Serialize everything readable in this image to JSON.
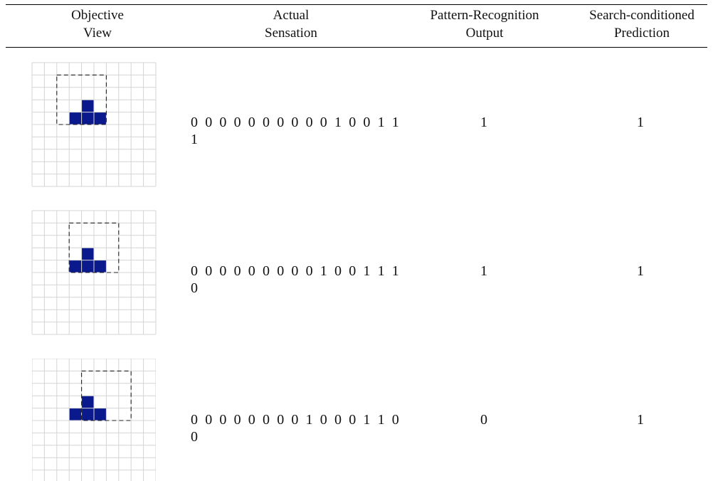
{
  "headers": {
    "objective": [
      "Objective",
      "View"
    ],
    "sensation": [
      "Actual",
      "Sensation"
    ],
    "pattern": [
      "Pattern-Recognition",
      "Output"
    ],
    "search": [
      "Search-conditioned",
      "Prediction"
    ]
  },
  "rows": [
    {
      "sensation": "0 0 0 0 0 0 0 0 0 0 1 0 0 1 1 1",
      "pattern_output": "1",
      "search_prediction": "1",
      "window": {
        "col": 2,
        "row": 1
      }
    },
    {
      "sensation": "0 0 0 0 0 0 0 0 0 1 0 0 1 1 1 0",
      "pattern_output": "1",
      "search_prediction": "1",
      "window": {
        "col": 3,
        "row": 1
      }
    },
    {
      "sensation": "0 0 0 0 0 0 0 0 1 0 0 0 1 1 0 0",
      "pattern_output": "0",
      "search_prediction": "1",
      "window": {
        "col": 4,
        "row": 1
      }
    }
  ],
  "shape": {
    "color": "#0a1a8c",
    "cells": [
      [
        4,
        3
      ],
      [
        3,
        4
      ],
      [
        4,
        4
      ],
      [
        5,
        4
      ]
    ]
  },
  "grid_size": 10,
  "window_size": 4
}
